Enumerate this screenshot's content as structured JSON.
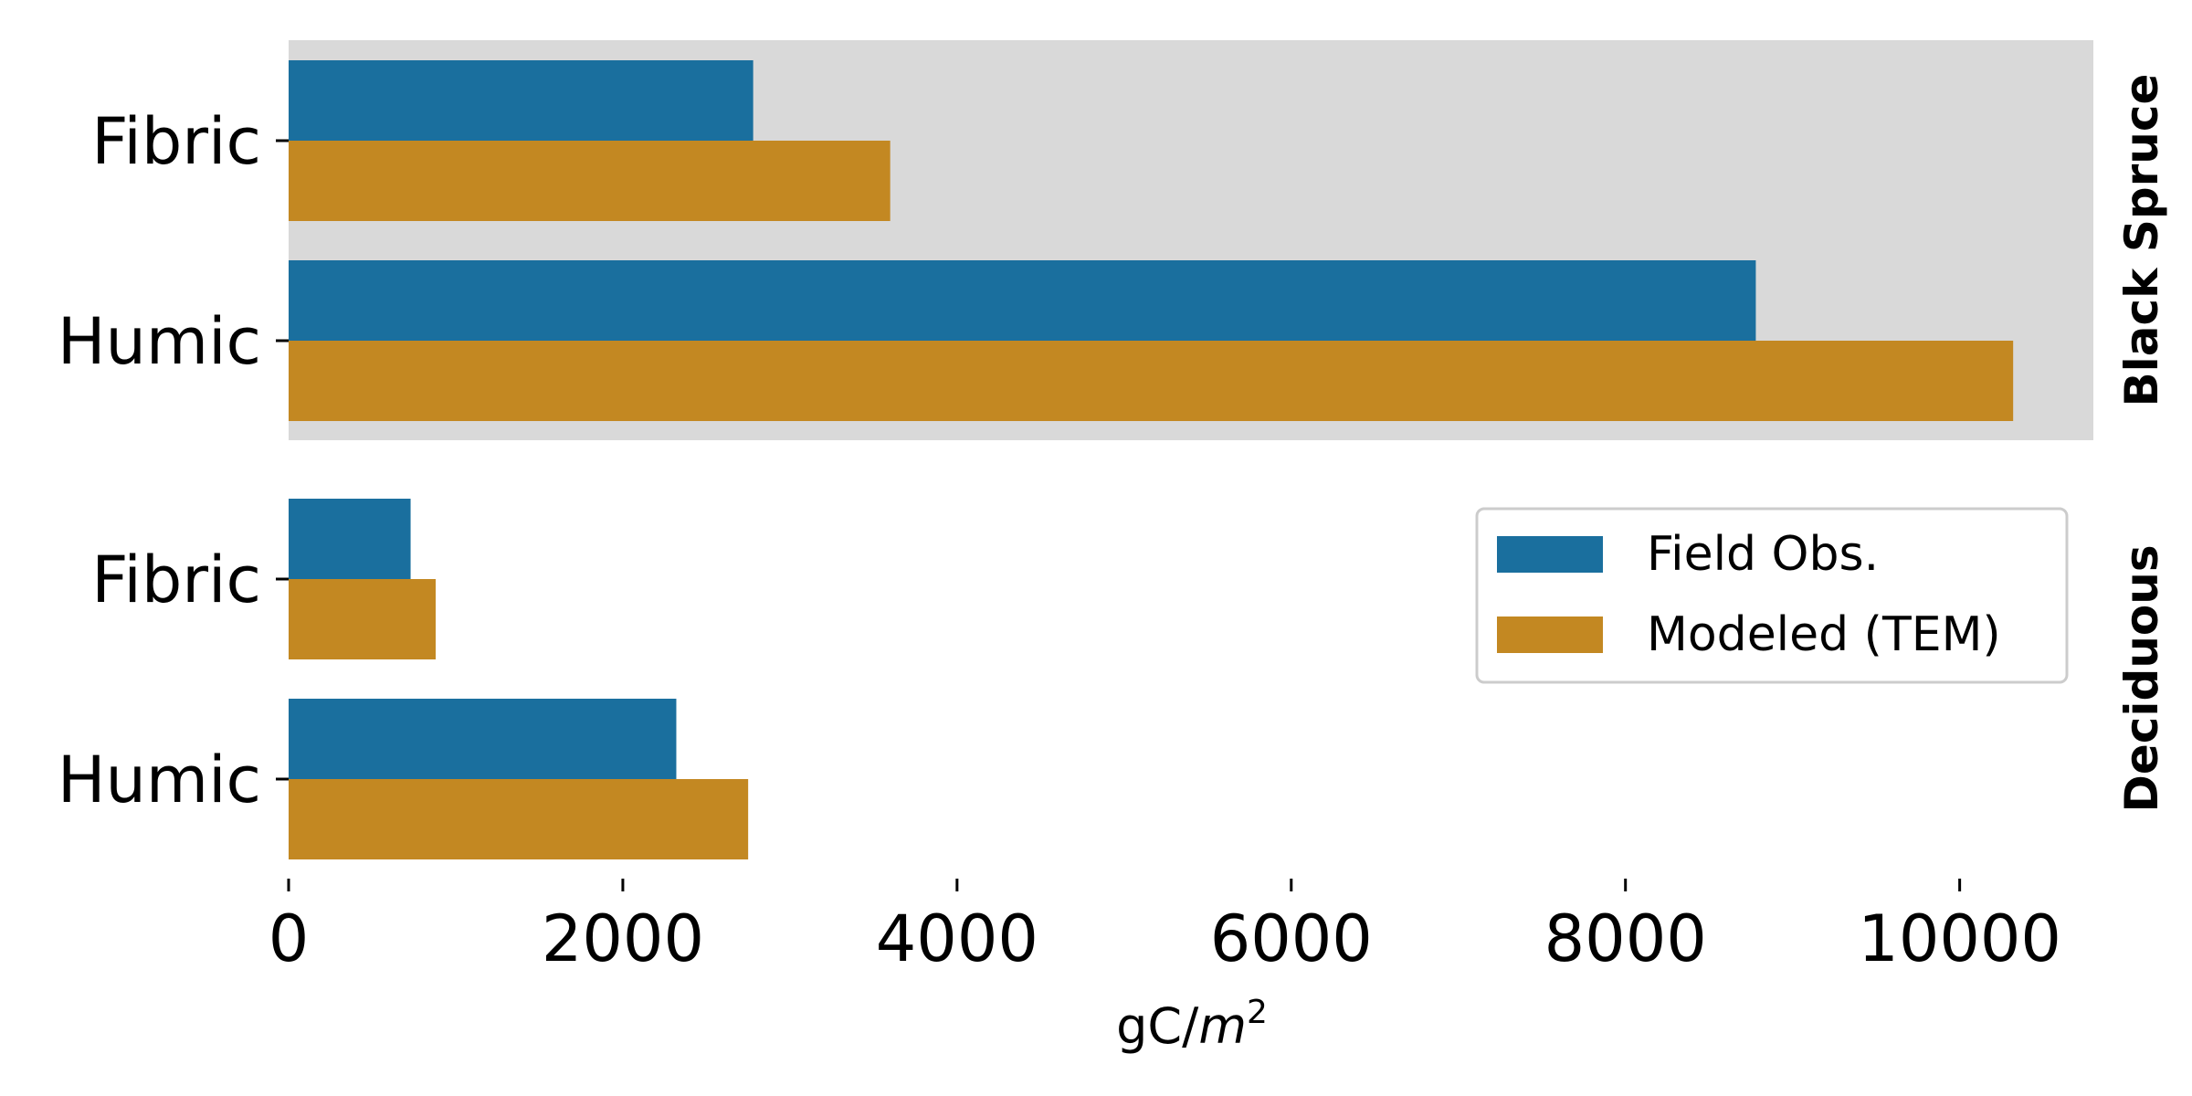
{
  "chart_data": {
    "type": "bar",
    "orientation": "horizontal",
    "categories": [
      "Fibric",
      "Humic"
    ],
    "facets": [
      {
        "name": "Black Spruce",
        "highlighted": true,
        "series": [
          {
            "name": "Field Obs.",
            "values": [
              2780,
              8780
            ]
          },
          {
            "name": "Modeled (TEM)",
            "values": [
              3600,
              10320
            ]
          }
        ]
      },
      {
        "name": "Deciduous",
        "highlighted": false,
        "series": [
          {
            "name": "Field Obs.",
            "values": [
              730,
              2320
            ]
          },
          {
            "name": "Modeled (TEM)",
            "values": [
              880,
              2750
            ]
          }
        ]
      }
    ],
    "legend": {
      "placement": "right, lower facet",
      "entries": [
        "Field Obs.",
        "Modeled (TEM)"
      ]
    },
    "xlabel": "gC/",
    "xlabel_italic": "m",
    "xlabel_superscript": "2",
    "xlim": [
      0,
      10800
    ],
    "xticks": [
      0,
      2000,
      4000,
      6000,
      8000,
      10000
    ],
    "grid": false,
    "colors": {
      "Field Obs.": "#1a6f9e",
      "Modeled (TEM)": "#c38822",
      "facet_background": "#d9d9d9"
    }
  }
}
